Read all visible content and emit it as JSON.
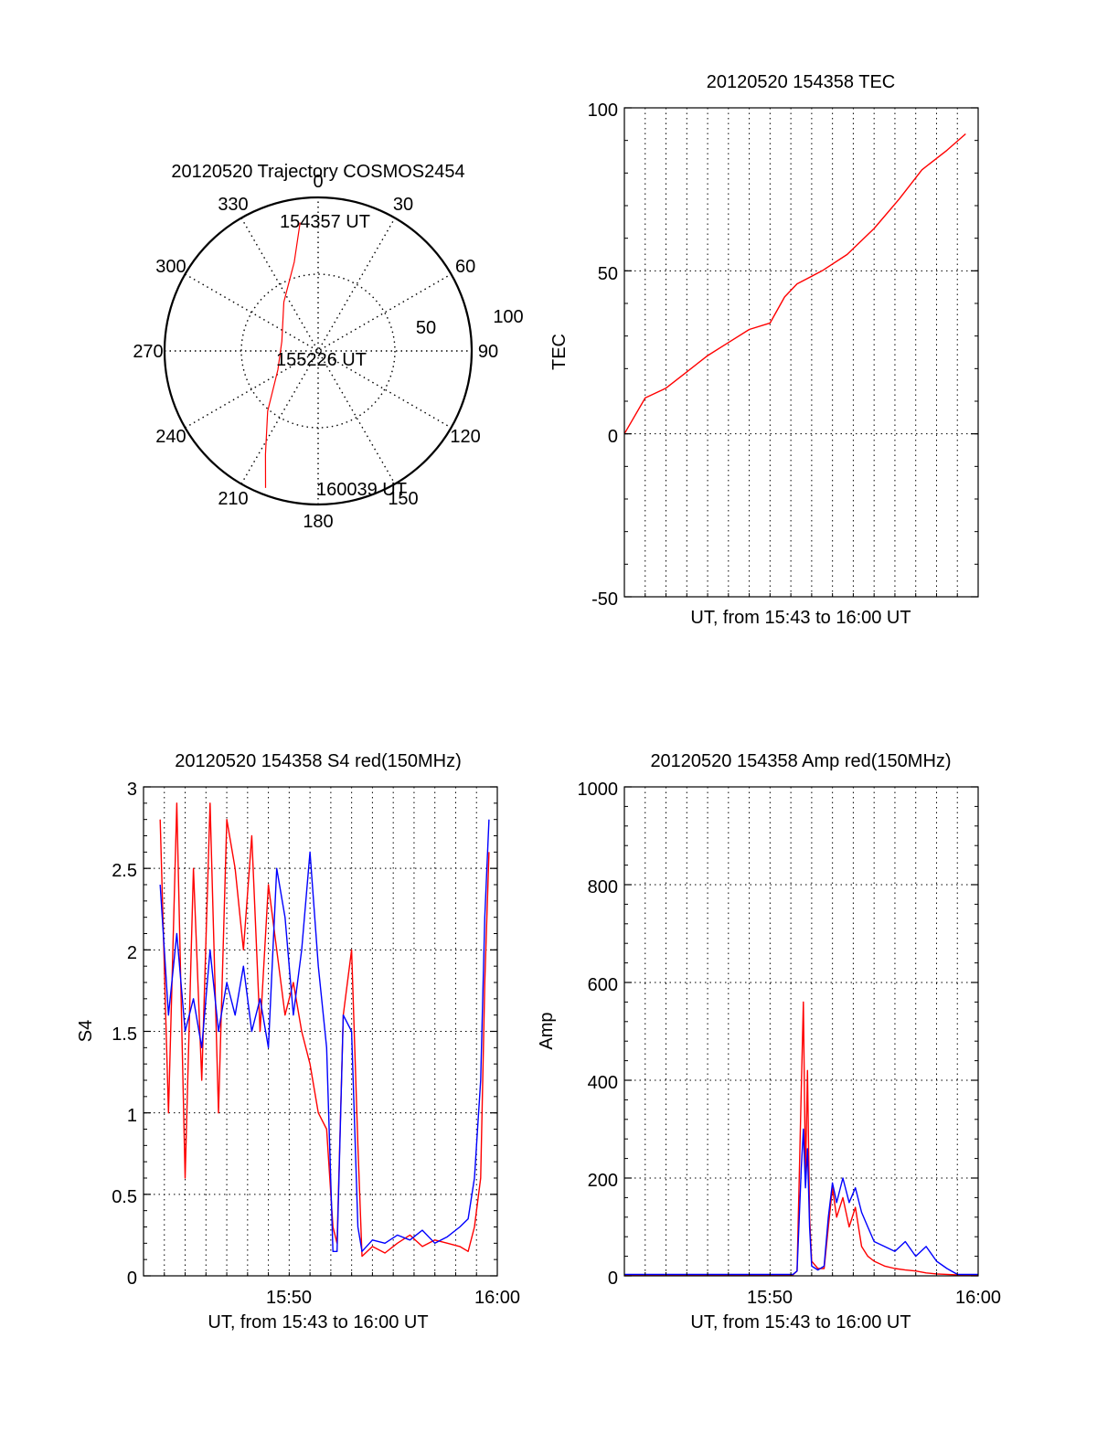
{
  "colors": {
    "red": "#ff0000",
    "blue": "#0000ff",
    "axis": "#000000",
    "grid": "#000000",
    "background": "#ffffff"
  },
  "chart_data": [
    {
      "id": "polar",
      "type": "scatter",
      "projection": "polar",
      "title": "20120520 Trajectory COSMOS2454",
      "azimuth_labels": [
        "0",
        "30",
        "60",
        "90",
        "120",
        "150",
        "180",
        "210",
        "240",
        "270",
        "300",
        "330"
      ],
      "radial_ticks": [
        "50",
        "100"
      ],
      "r_max": 100,
      "grid": true,
      "track": [
        {
          "az": 352,
          "el": 14,
          "label": "154357 UT"
        },
        {
          "az": 345,
          "el": 36
        },
        {
          "az": 325,
          "el": 55
        },
        {
          "az": 285,
          "el": 68
        },
        {
          "az": 245,
          "el": 64
        },
        {
          "az": 220,
          "el": 44
        },
        {
          "az": 207,
          "el": 22
        },
        {
          "az": 201,
          "el": 4,
          "label": "160039 UT"
        }
      ],
      "annotations": [
        "155226 UT"
      ]
    },
    {
      "id": "tec",
      "type": "line",
      "title": "20120520 154358 TEC",
      "xlabel": "UT, from 15:43 to 16:00 UT",
      "ylabel": "TEC",
      "ylim": [
        -50,
        100
      ],
      "yticks": [
        "-50",
        "0",
        "50",
        "100"
      ],
      "xticks": [],
      "grid": true,
      "xlim_minutes": [
        0,
        17
      ],
      "series": [
        {
          "color": "red",
          "points": [
            [
              0,
              0
            ],
            [
              1,
              11
            ],
            [
              2,
              14
            ],
            [
              3,
              19
            ],
            [
              4,
              24
            ],
            [
              5,
              28
            ],
            [
              6,
              32
            ],
            [
              7,
              34
            ],
            [
              7.7,
              42
            ],
            [
              8.3,
              46
            ],
            [
              9.5,
              50
            ],
            [
              10.7,
              55
            ],
            [
              12,
              63
            ],
            [
              13.2,
              72
            ],
            [
              14.3,
              81
            ],
            [
              15.5,
              87
            ],
            [
              16.4,
              92
            ]
          ]
        }
      ]
    },
    {
      "id": "s4",
      "type": "line",
      "title": "20120520 154358 S4 red(150MHz)",
      "xlabel": "UT, from 15:43 to 16:00 UT",
      "ylabel": "S4",
      "ylim": [
        0,
        3
      ],
      "yticks": [
        "0",
        "0.5",
        "1",
        "1.5",
        "2",
        "2.5",
        "3"
      ],
      "xticks": [
        {
          "m": 7,
          "label": "15:50"
        },
        {
          "m": 17,
          "label": "16:00"
        }
      ],
      "grid": true,
      "xlim_minutes": [
        0,
        17
      ],
      "series": [
        {
          "color": "red",
          "points": [
            [
              0.8,
              2.8
            ],
            [
              1.2,
              1.0
            ],
            [
              1.6,
              2.9
            ],
            [
              2.0,
              0.6
            ],
            [
              2.4,
              2.5
            ],
            [
              2.8,
              1.2
            ],
            [
              3.2,
              2.9
            ],
            [
              3.6,
              1.0
            ],
            [
              4.0,
              2.8
            ],
            [
              4.4,
              2.5
            ],
            [
              4.8,
              2.0
            ],
            [
              5.2,
              2.7
            ],
            [
              5.6,
              1.5
            ],
            [
              6.0,
              2.4
            ],
            [
              6.4,
              2.0
            ],
            [
              6.8,
              1.6
            ],
            [
              7.2,
              1.8
            ],
            [
              7.6,
              1.5
            ],
            [
              8.0,
              1.3
            ],
            [
              8.4,
              1.0
            ],
            [
              8.8,
              0.9
            ],
            [
              9.1,
              0.3
            ],
            [
              9.3,
              0.2
            ],
            [
              9.6,
              1.6
            ],
            [
              10.0,
              2.0
            ],
            [
              10.3,
              0.8
            ],
            [
              10.5,
              0.12
            ],
            [
              11.0,
              0.18
            ],
            [
              11.6,
              0.14
            ],
            [
              12.2,
              0.2
            ],
            [
              12.8,
              0.25
            ],
            [
              13.4,
              0.18
            ],
            [
              14.0,
              0.22
            ],
            [
              14.6,
              0.2
            ],
            [
              15.2,
              0.18
            ],
            [
              15.6,
              0.15
            ],
            [
              15.9,
              0.3
            ],
            [
              16.2,
              0.6
            ],
            [
              16.4,
              1.8
            ],
            [
              16.6,
              2.6
            ]
          ]
        },
        {
          "color": "blue",
          "points": [
            [
              0.8,
              2.4
            ],
            [
              1.2,
              1.6
            ],
            [
              1.6,
              2.1
            ],
            [
              2.0,
              1.5
            ],
            [
              2.4,
              1.7
            ],
            [
              2.8,
              1.4
            ],
            [
              3.2,
              2.0
            ],
            [
              3.6,
              1.5
            ],
            [
              4.0,
              1.8
            ],
            [
              4.4,
              1.6
            ],
            [
              4.8,
              1.9
            ],
            [
              5.2,
              1.5
            ],
            [
              5.6,
              1.7
            ],
            [
              6.0,
              1.4
            ],
            [
              6.4,
              2.5
            ],
            [
              6.8,
              2.2
            ],
            [
              7.2,
              1.6
            ],
            [
              7.6,
              2.0
            ],
            [
              8.0,
              2.6
            ],
            [
              8.4,
              1.9
            ],
            [
              8.8,
              1.4
            ],
            [
              9.1,
              0.15
            ],
            [
              9.3,
              0.15
            ],
            [
              9.6,
              1.6
            ],
            [
              10.0,
              1.5
            ],
            [
              10.3,
              0.3
            ],
            [
              10.5,
              0.15
            ],
            [
              11.0,
              0.22
            ],
            [
              11.6,
              0.2
            ],
            [
              12.2,
              0.25
            ],
            [
              12.8,
              0.22
            ],
            [
              13.4,
              0.28
            ],
            [
              14.0,
              0.2
            ],
            [
              14.6,
              0.24
            ],
            [
              15.2,
              0.3
            ],
            [
              15.6,
              0.35
            ],
            [
              15.9,
              0.6
            ],
            [
              16.2,
              1.2
            ],
            [
              16.4,
              2.2
            ],
            [
              16.6,
              2.8
            ]
          ]
        }
      ]
    },
    {
      "id": "amp",
      "type": "line",
      "title": "20120520 154358 Amp red(150MHz)",
      "xlabel": "UT, from 15:43 to 16:00 UT",
      "ylabel": "Amp",
      "ylim": [
        0,
        1000
      ],
      "yticks": [
        "0",
        "200",
        "400",
        "600",
        "800",
        "1000"
      ],
      "xticks": [
        {
          "m": 7,
          "label": "15:50"
        },
        {
          "m": 17,
          "label": "16:00"
        }
      ],
      "grid": true,
      "xlim_minutes": [
        0,
        17
      ],
      "series": [
        {
          "color": "red",
          "points": [
            [
              0,
              2
            ],
            [
              6,
              2
            ],
            [
              8.1,
              2
            ],
            [
              8.3,
              10
            ],
            [
              8.5,
              380
            ],
            [
              8.6,
              560
            ],
            [
              8.7,
              200
            ],
            [
              8.8,
              420
            ],
            [
              8.9,
              120
            ],
            [
              9.0,
              30
            ],
            [
              9.3,
              15
            ],
            [
              9.6,
              15
            ],
            [
              9.8,
              100
            ],
            [
              10.0,
              180
            ],
            [
              10.2,
              120
            ],
            [
              10.5,
              160
            ],
            [
              10.8,
              100
            ],
            [
              11.1,
              140
            ],
            [
              11.4,
              60
            ],
            [
              11.7,
              40
            ],
            [
              12.0,
              30
            ],
            [
              12.5,
              20
            ],
            [
              13.0,
              15
            ],
            [
              13.5,
              12
            ],
            [
              14.0,
              10
            ],
            [
              14.5,
              6
            ],
            [
              15.0,
              4
            ],
            [
              16.0,
              2
            ],
            [
              17,
              2
            ]
          ]
        },
        {
          "color": "blue",
          "points": [
            [
              0,
              3
            ],
            [
              6,
              3
            ],
            [
              8.1,
              3
            ],
            [
              8.3,
              10
            ],
            [
              8.5,
              220
            ],
            [
              8.6,
              300
            ],
            [
              8.7,
              180
            ],
            [
              8.8,
              260
            ],
            [
              8.9,
              100
            ],
            [
              9.0,
              20
            ],
            [
              9.3,
              12
            ],
            [
              9.6,
              20
            ],
            [
              9.8,
              120
            ],
            [
              10.0,
              190
            ],
            [
              10.2,
              150
            ],
            [
              10.5,
              200
            ],
            [
              10.8,
              150
            ],
            [
              11.1,
              180
            ],
            [
              11.4,
              130
            ],
            [
              11.7,
              100
            ],
            [
              12.0,
              70
            ],
            [
              12.5,
              60
            ],
            [
              13.0,
              50
            ],
            [
              13.5,
              70
            ],
            [
              14.0,
              40
            ],
            [
              14.5,
              60
            ],
            [
              15.0,
              30
            ],
            [
              15.5,
              15
            ],
            [
              16.0,
              3
            ],
            [
              17,
              3
            ]
          ]
        }
      ]
    }
  ]
}
